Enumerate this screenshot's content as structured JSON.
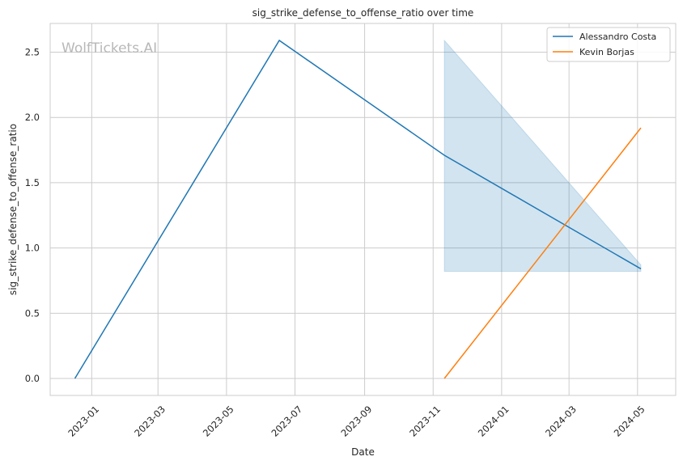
{
  "chart_data": {
    "type": "line",
    "title": "sig_strike_defense_to_offense_ratio over time",
    "xlabel": "Date",
    "ylabel": "sig_strike_defense_to_offense_ratio",
    "watermark": "WolfTickets.AI",
    "x_ticks": [
      "2023-01",
      "2023-03",
      "2023-05",
      "2023-07",
      "2023-09",
      "2023-11",
      "2024-01",
      "2024-03",
      "2024-05"
    ],
    "y_ticks": [
      0.0,
      0.5,
      1.0,
      1.5,
      2.0,
      2.5
    ],
    "y_tick_labels": [
      "0.0",
      "0.5",
      "1.0",
      "1.5",
      "2.0",
      "2.5"
    ],
    "xlim": [
      "2022-11-25",
      "2024-06-04"
    ],
    "ylim": [
      -0.13,
      2.72
    ],
    "grid": true,
    "legend_position": "top-right",
    "series": [
      {
        "name": "Alessandro Costa",
        "color": "#1f77b4",
        "points": [
          {
            "x": "2022-12-17",
            "y": 0.0
          },
          {
            "x": "2023-06-17",
            "y": 2.59
          },
          {
            "x": "2023-11-11",
            "y": 1.71
          },
          {
            "x": "2024-05-04",
            "y": 0.84
          }
        ],
        "band": {
          "color": "#1f77b4",
          "opacity": 0.2,
          "points": [
            {
              "x": "2023-11-11",
              "low": 0.82,
              "high": 2.59
            },
            {
              "x": "2024-05-04",
              "low": 0.82,
              "high": 0.87
            }
          ]
        }
      },
      {
        "name": "Kevin Borjas",
        "color": "#ff7f0e",
        "points": [
          {
            "x": "2023-11-11",
            "y": 0.0
          },
          {
            "x": "2024-05-04",
            "y": 1.92
          }
        ]
      }
    ]
  }
}
